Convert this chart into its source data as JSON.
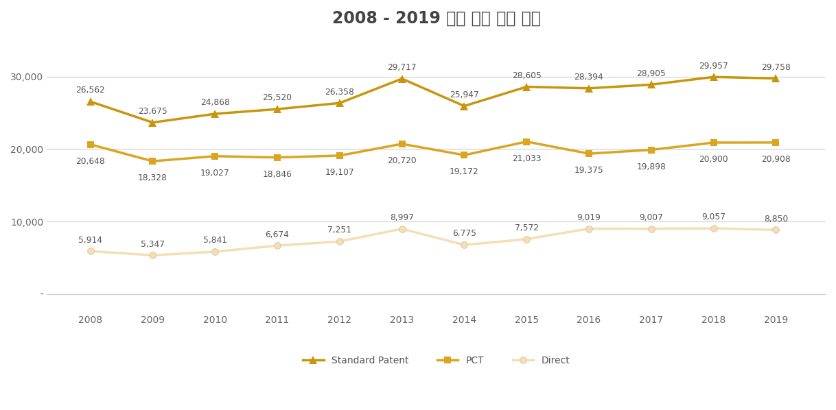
{
  "title": "2008 - 2019 호주 특허 출원 건수",
  "years": [
    2008,
    2009,
    2010,
    2011,
    2012,
    2013,
    2014,
    2015,
    2016,
    2017,
    2018,
    2019
  ],
  "standard_patent": [
    26562,
    23675,
    24868,
    25520,
    26358,
    29717,
    25947,
    28605,
    28394,
    28905,
    29957,
    29758
  ],
  "pct": [
    20648,
    18328,
    19027,
    18846,
    19107,
    20720,
    19172,
    21033,
    19375,
    19898,
    20900,
    20908
  ],
  "direct": [
    5914,
    5347,
    5841,
    6674,
    7251,
    8997,
    6775,
    7572,
    9019,
    9007,
    9057,
    8850
  ],
  "standard_color": "#C8960C",
  "pct_color": "#DAA520",
  "direct_color": "#F5DEB3",
  "standard_label": "Standard Patent",
  "pct_label": "PCT",
  "direct_label": "Direct",
  "yticks": [
    0,
    10000,
    20000,
    30000
  ],
  "ytick_labels": [
    "-",
    "10,000",
    "20,000",
    "30,000"
  ],
  "ylim": [
    -2500,
    35000
  ],
  "background_color": "#FFFFFF",
  "title_fontsize": 17,
  "annotation_fontsize": 8.8
}
